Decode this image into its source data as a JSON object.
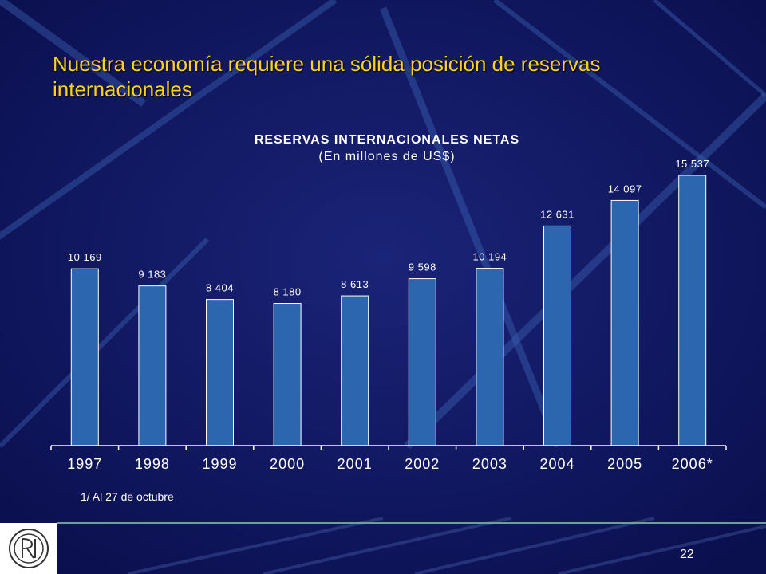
{
  "slide": {
    "title": "Nuestra economía requiere una sólida posición de reservas internacionales",
    "footnote": "1/ Al 27 de octubre",
    "page_number": "22",
    "logo": "bcrp-seal-logo"
  },
  "colors": {
    "background": "#0e1460",
    "title": "#ffd21a",
    "bar": "#2b66ae",
    "text": "#ffffff"
  },
  "chart_data": {
    "type": "bar",
    "title": "RESERVAS INTERNACIONALES NETAS",
    "subtitle": "(En millones de US$)",
    "categories": [
      "1997",
      "1998",
      "1999",
      "2000",
      "2001",
      "2002",
      "2003",
      "2004",
      "2005",
      "2006*"
    ],
    "values": [
      10169,
      9183,
      8404,
      8180,
      8613,
      9598,
      10194,
      12631,
      14097,
      15537
    ],
    "value_labels": [
      "10 169",
      "9 183",
      "8 404",
      "8 180",
      "8 613",
      "9 598",
      "10 194",
      "12 631",
      "14 097",
      "15 537"
    ],
    "ylim": [
      0,
      16000
    ],
    "xlabel": "",
    "ylabel": "",
    "grid": false,
    "legend": "none"
  }
}
